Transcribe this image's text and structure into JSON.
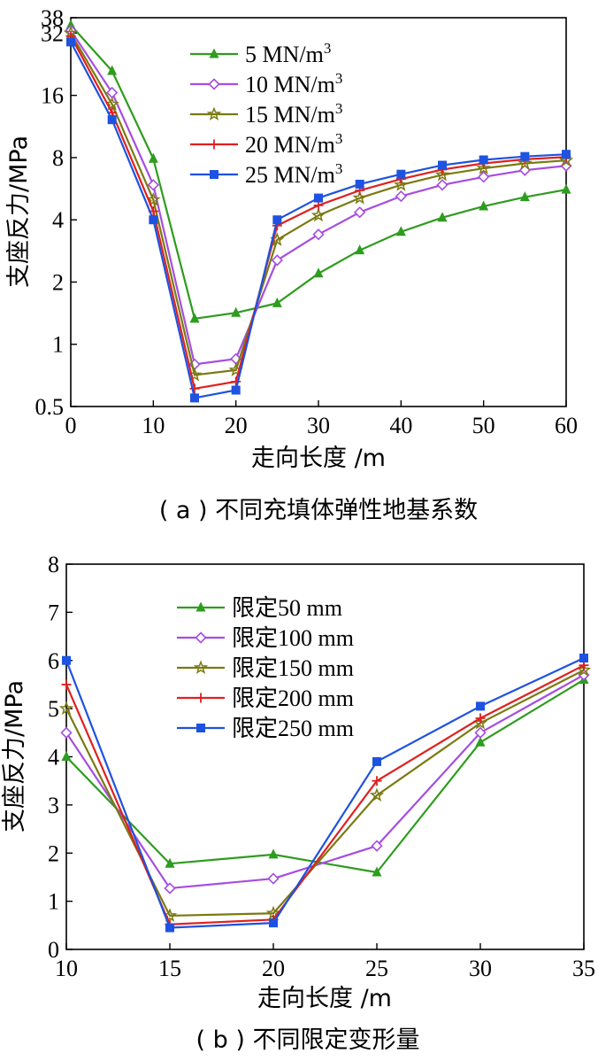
{
  "chart_data": [
    {
      "type": "line",
      "caption": "( a ) 不同充填体弹性地基系数",
      "xlabel": "走向长度 /m",
      "ylabel": "支座反力/MPa",
      "xlim": [
        0,
        60
      ],
      "ylim": [
        0.5,
        38
      ],
      "yscale": "log",
      "xticks": [
        "0",
        "10",
        "20",
        "30",
        "40",
        "50",
        "60"
      ],
      "yticks": [
        "0.5",
        "1",
        "2",
        "4",
        "8",
        "16",
        "32",
        "38"
      ],
      "legend_position": "top-right",
      "x": [
        0,
        5,
        10,
        15,
        20,
        25,
        30,
        35,
        40,
        45,
        50,
        55,
        60
      ],
      "series": [
        {
          "name": "5 MN/m³",
          "label_main": "5 MN/m",
          "label_sup": "3",
          "color": "#2e9c1e",
          "marker": "triangle",
          "values": [
            35.0,
            21.0,
            7.9,
            1.33,
            1.42,
            1.58,
            2.2,
            2.85,
            3.5,
            4.1,
            4.65,
            5.15,
            5.6
          ]
        },
        {
          "name": "10 MN/m³",
          "label_main": "10 MN/m",
          "label_sup": "3",
          "color": "#a64de0",
          "marker": "diamond",
          "values": [
            33.0,
            16.5,
            5.9,
            0.8,
            0.85,
            2.55,
            3.4,
            4.35,
            5.2,
            5.9,
            6.45,
            6.95,
            7.3
          ]
        },
        {
          "name": "15 MN/m³",
          "label_main": "15 MN/m",
          "label_sup": "3",
          "color": "#7a7a12",
          "marker": "star",
          "values": [
            32.0,
            14.5,
            5.0,
            0.71,
            0.75,
            3.2,
            4.2,
            5.1,
            5.9,
            6.6,
            7.1,
            7.5,
            7.75
          ]
        },
        {
          "name": "20 MN/m³",
          "label_main": "20 MN/m",
          "label_sup": "3",
          "color": "#e02020",
          "marker": "plus",
          "values": [
            31.0,
            13.2,
            4.4,
            0.61,
            0.66,
            3.75,
            4.7,
            5.55,
            6.3,
            7.0,
            7.5,
            7.85,
            8.05
          ]
        },
        {
          "name": "25 MN/m³",
          "label_main": "25 MN/m",
          "label_sup": "3",
          "color": "#1e52e0",
          "marker": "square",
          "values": [
            29.0,
            12.2,
            4.0,
            0.55,
            0.6,
            4.0,
            5.1,
            5.95,
            6.65,
            7.35,
            7.8,
            8.1,
            8.3
          ]
        }
      ]
    },
    {
      "type": "line",
      "caption": "( b ) 不同限定变形量",
      "xlabel": "走向长度 /m",
      "ylabel": "支座反力/MPa",
      "xlim": [
        10,
        35
      ],
      "ylim": [
        0,
        8
      ],
      "yscale": "linear",
      "xticks": [
        "10",
        "15",
        "20",
        "25",
        "30",
        "35"
      ],
      "yticks": [
        "0",
        "1",
        "2",
        "3",
        "4",
        "5",
        "6",
        "7",
        "8"
      ],
      "legend_position": "top-center",
      "x": [
        10,
        15,
        20,
        25,
        30,
        35
      ],
      "series": [
        {
          "name": "限定50 mm",
          "color": "#2e9c1e",
          "marker": "triangle",
          "values": [
            4.0,
            1.78,
            1.97,
            1.6,
            4.3,
            5.6
          ]
        },
        {
          "name": "限定100 mm",
          "color": "#a64de0",
          "marker": "diamond",
          "values": [
            4.5,
            1.27,
            1.47,
            2.15,
            4.5,
            5.7
          ]
        },
        {
          "name": "限定150 mm",
          "color": "#7a7a12",
          "marker": "star",
          "values": [
            5.0,
            0.7,
            0.75,
            3.2,
            4.7,
            5.8
          ]
        },
        {
          "name": "限定200 mm",
          "color": "#e02020",
          "marker": "plus",
          "values": [
            5.5,
            0.52,
            0.62,
            3.5,
            4.8,
            5.9
          ]
        },
        {
          "name": "限定250 mm",
          "color": "#1e52e0",
          "marker": "square",
          "values": [
            6.0,
            0.45,
            0.55,
            3.9,
            5.05,
            6.05
          ]
        }
      ]
    }
  ]
}
